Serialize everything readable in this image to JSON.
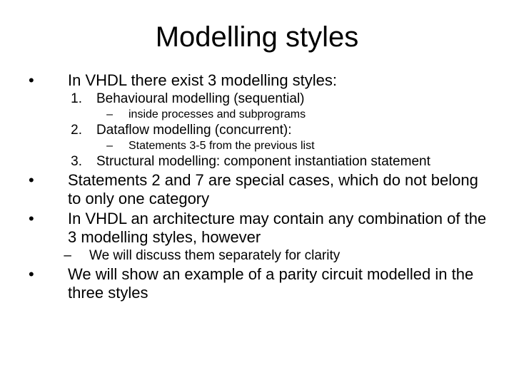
{
  "title": "Modelling styles",
  "b1": {
    "text": "In VHDL there exist 3 modelling styles:",
    "n1": {
      "label": "1.",
      "text": "Behavioural modelling (sequential)",
      "sub": {
        "text": "inside processes and subprograms"
      }
    },
    "n2": {
      "label": "2.",
      "text": "Dataflow modelling (concurrent):",
      "sub": {
        "text": "Statements 3-5 from the previous list"
      }
    },
    "n3": {
      "label": "3.",
      "text": "Structural modelling: component instantiation statement"
    }
  },
  "b2": {
    "text": "Statements 2 and 7 are special cases, which do not belong to only one category"
  },
  "b3": {
    "text": "In VHDL an architecture may contain any combination of the 3 modelling styles, however",
    "sub": {
      "text": "We will discuss them separately for clarity"
    }
  },
  "b4": {
    "text": "We will show an example of a parity circuit modelled  in the three styles"
  },
  "bullets": {
    "disc": "•",
    "dash": "–"
  }
}
